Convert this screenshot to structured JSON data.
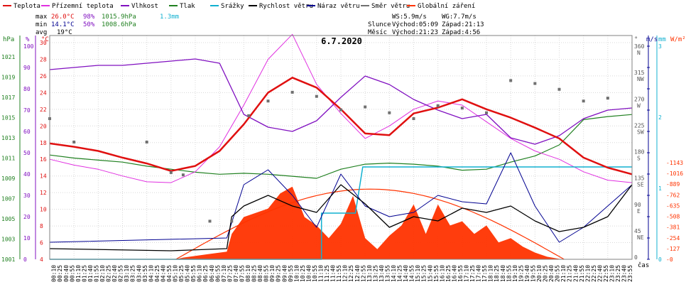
{
  "chart_data": {
    "type": "line",
    "title": "6.7.2020",
    "legend": [
      {
        "name": "Teplota",
        "color": "#e01010"
      },
      {
        "name": "Přízemní teplota",
        "color": "#e030e0"
      },
      {
        "name": "Vlhkost",
        "color": "#8010c0"
      },
      {
        "name": "Tlak",
        "color": "#208020"
      },
      {
        "name": "Srážky",
        "color": "#10b0d0"
      },
      {
        "name": "Rychlost větru",
        "color": "#000000"
      },
      {
        "name": "Náraz větru",
        "color": "#000090"
      },
      {
        "name": "Směr větru",
        "color": "#707070"
      },
      {
        "name": "Globální záření",
        "color": "#ff3300"
      }
    ],
    "stats": {
      "max_label": "max",
      "max_temp": "26.0°C",
      "max_hum": "98%",
      "max_press": "1015.9hPa",
      "rain": "1.3mm",
      "min_label": "min",
      "min_temp": "14.1°C",
      "min_hum": "50%",
      "min_press": "1008.6hPa",
      "avg_label": "avg",
      "avg_temp": "19°C"
    },
    "info": {
      "ws": "WS:5.9m/s",
      "wg": "WG:7.7m/s",
      "sun_label": "Slunce",
      "sun_rise": "Východ:05:09",
      "sun_set": "Západ:21:13",
      "moon_label": "Měsíc",
      "moon_rise": "Východ:21:23",
      "moon_set": "Západ:4:56"
    },
    "axis_units": {
      "hpa": "hPa",
      "pct": "%",
      "temp": "°C",
      "dir": "°",
      "wind": "m/s",
      "rain": "mm",
      "rad": "W/m²",
      "time": "čas"
    },
    "axes": {
      "hpa_ticks": [
        "1021",
        "1019",
        "1017",
        "1015",
        "1013",
        "1011",
        "1009",
        "1007",
        "1005",
        "1003",
        "1001"
      ],
      "pct_ticks": [
        "100",
        "90",
        "80",
        "70",
        "60",
        "50",
        "40",
        "30",
        "20",
        "10",
        "0"
      ],
      "temp_ticks": [
        "30",
        "28",
        "26",
        "24",
        "22",
        "20",
        "18",
        "16",
        "14",
        "12",
        "10",
        "8",
        "6",
        "4"
      ],
      "dir_ticks": [
        "360",
        "315",
        "270",
        "225",
        "180",
        "135",
        "90",
        "45",
        "0"
      ],
      "dir_labels": [
        "N",
        "NW",
        "W",
        "SW",
        "S",
        "SE",
        "E",
        "NE",
        ""
      ],
      "wind_ticks": [
        "10",
        "9",
        "8",
        "7",
        "6",
        "5",
        "4",
        "3",
        "2",
        "1",
        "0"
      ],
      "rain_ticks": [
        "3",
        "2",
        "1",
        "0"
      ],
      "rad_ticks": [
        "1143",
        "1016",
        "889",
        "762",
        "635",
        "508",
        "381",
        "254",
        "127",
        "0"
      ],
      "time_labels": [
        "00:10",
        "00:25",
        "00:40",
        "00:55",
        "01:10",
        "01:25",
        "01:40",
        "01:55",
        "02:10",
        "02:25",
        "02:40",
        "02:55",
        "03:10",
        "03:25",
        "03:40",
        "03:55",
        "04:10",
        "04:25",
        "04:40",
        "04:55",
        "05:10",
        "05:25",
        "05:40",
        "05:55",
        "06:10",
        "06:25",
        "06:40",
        "06:55",
        "07:10",
        "07:25",
        "07:40",
        "07:55",
        "08:10",
        "08:25",
        "08:40",
        "08:55",
        "09:10",
        "09:25",
        "09:40",
        "09:55",
        "10:10",
        "10:25",
        "10:40",
        "10:55",
        "11:10",
        "11:25",
        "11:40",
        "11:55",
        "12:10",
        "12:25",
        "12:40",
        "12:55",
        "13:10",
        "13:25",
        "13:40",
        "13:55",
        "14:10",
        "14:25",
        "14:40",
        "14:55",
        "15:10",
        "15:25",
        "15:40",
        "15:55",
        "16:10",
        "16:25",
        "16:40",
        "16:55",
        "17:10",
        "17:25",
        "17:40",
        "17:55",
        "18:10",
        "18:25",
        "18:40",
        "18:55",
        "19:10",
        "19:25",
        "19:40",
        "19:55",
        "20:10",
        "20:25",
        "20:40",
        "20:55",
        "21:10",
        "21:25",
        "21:40",
        "21:55",
        "22:10",
        "22:25",
        "22:40",
        "22:55",
        "23:10",
        "23:25",
        "23:40",
        "23:55"
      ]
    },
    "series_hours": {
      "temperature": [
        [
          0,
          17.9
        ],
        [
          1,
          17.5
        ],
        [
          2,
          17.0
        ],
        [
          3,
          16.2
        ],
        [
          4,
          15.5
        ],
        [
          5,
          14.6
        ],
        [
          6,
          15.2
        ],
        [
          7,
          17.0
        ],
        [
          8,
          20.2
        ],
        [
          9,
          24.0
        ],
        [
          10,
          25.8
        ],
        [
          11,
          24.6
        ],
        [
          12,
          22.0
        ],
        [
          13,
          19.1
        ],
        [
          14,
          18.9
        ],
        [
          15,
          21.5
        ],
        [
          16,
          22.2
        ],
        [
          17,
          23.2
        ],
        [
          18,
          22.0
        ],
        [
          19,
          21.0
        ],
        [
          20,
          19.8
        ],
        [
          21,
          18.5
        ],
        [
          22,
          16.2
        ],
        [
          23,
          15.0
        ],
        [
          24,
          14.2
        ]
      ],
      "ground_temperature": [
        [
          0,
          16.0
        ],
        [
          1,
          15.3
        ],
        [
          2,
          14.8
        ],
        [
          3,
          14.0
        ],
        [
          4,
          13.3
        ],
        [
          5,
          13.2
        ],
        [
          6,
          14.5
        ],
        [
          7,
          17.5
        ],
        [
          8,
          22.5
        ],
        [
          9,
          28.0
        ],
        [
          10,
          31.0
        ],
        [
          11,
          25.0
        ],
        [
          12,
          21.5
        ],
        [
          13,
          18.5
        ],
        [
          14,
          20.0
        ],
        [
          15,
          22.0
        ],
        [
          16,
          23.0
        ],
        [
          17,
          22.5
        ],
        [
          18,
          20.5
        ],
        [
          19,
          18.5
        ],
        [
          20,
          17.0
        ],
        [
          21,
          16.0
        ],
        [
          22,
          14.5
        ],
        [
          23,
          13.5
        ],
        [
          24,
          13.2
        ]
      ],
      "humidity": [
        [
          0,
          89
        ],
        [
          1,
          90
        ],
        [
          2,
          91
        ],
        [
          3,
          91
        ],
        [
          4,
          92
        ],
        [
          5,
          93
        ],
        [
          6,
          94
        ],
        [
          7,
          92
        ],
        [
          8,
          68
        ],
        [
          9,
          62
        ],
        [
          10,
          60
        ],
        [
          11,
          65
        ],
        [
          12,
          76
        ],
        [
          13,
          86
        ],
        [
          14,
          82
        ],
        [
          15,
          75
        ],
        [
          16,
          70
        ],
        [
          17,
          66
        ],
        [
          18,
          68
        ],
        [
          19,
          57
        ],
        [
          20,
          54
        ],
        [
          21,
          58
        ],
        [
          22,
          66
        ],
        [
          23,
          70
        ],
        [
          24,
          71
        ]
      ],
      "pressure": [
        [
          0,
          1011.3
        ],
        [
          1,
          1011.0
        ],
        [
          2,
          1010.8
        ],
        [
          3,
          1010.6
        ],
        [
          4,
          1010.2
        ],
        [
          5,
          1009.9
        ],
        [
          6,
          1009.6
        ],
        [
          7,
          1009.4
        ],
        [
          8,
          1009.5
        ],
        [
          9,
          1009.4
        ],
        [
          10,
          1009.2
        ],
        [
          11,
          1009.0
        ],
        [
          12,
          1009.9
        ],
        [
          13,
          1010.4
        ],
        [
          14,
          1010.5
        ],
        [
          15,
          1010.4
        ],
        [
          16,
          1010.2
        ],
        [
          17,
          1009.8
        ],
        [
          18,
          1009.9
        ],
        [
          19,
          1010.6
        ],
        [
          20,
          1011.2
        ],
        [
          21,
          1012.3
        ],
        [
          22,
          1014.8
        ],
        [
          23,
          1015.1
        ],
        [
          24,
          1015.3
        ]
      ],
      "rain_mm": [
        [
          0,
          0
        ],
        [
          11.2,
          0
        ],
        [
          11.2,
          0.65
        ],
        [
          12.6,
          0.65
        ],
        [
          12.9,
          1.3
        ],
        [
          24,
          1.3
        ]
      ],
      "wind_speed": [
        [
          0,
          0.5
        ],
        [
          5,
          0.4
        ],
        [
          7.3,
          0.5
        ],
        [
          7.5,
          2.0
        ],
        [
          8,
          2.5
        ],
        [
          9,
          3.0
        ],
        [
          10,
          2.5
        ],
        [
          11,
          2.2
        ],
        [
          12,
          3.5
        ],
        [
          13,
          2.6
        ],
        [
          14,
          1.5
        ],
        [
          15,
          2.0
        ],
        [
          16,
          1.8
        ],
        [
          17,
          2.4
        ],
        [
          18,
          2.2
        ],
        [
          19,
          2.5
        ],
        [
          20,
          1.8
        ],
        [
          21,
          1.3
        ],
        [
          22,
          1.5
        ],
        [
          23,
          2.0
        ],
        [
          24,
          3.5
        ]
      ],
      "wind_gust": [
        [
          0,
          0.8
        ],
        [
          7.3,
          1.0
        ],
        [
          8,
          3.5
        ],
        [
          9,
          4.2
        ],
        [
          10,
          3.0
        ],
        [
          11,
          1.5
        ],
        [
          12,
          4.0
        ],
        [
          13,
          2.5
        ],
        [
          14,
          2.0
        ],
        [
          15,
          2.2
        ],
        [
          16,
          3.0
        ],
        [
          17,
          2.7
        ],
        [
          18,
          2.6
        ],
        [
          19,
          5.0
        ],
        [
          20,
          2.5
        ],
        [
          21,
          0.8
        ],
        [
          22,
          1.5
        ],
        [
          23,
          2.5
        ],
        [
          24,
          3.5
        ]
      ],
      "wind_dir_deg": [
        [
          0,
          240
        ],
        [
          1,
          200
        ],
        [
          4,
          200
        ],
        [
          5,
          148
        ],
        [
          5.5,
          144
        ],
        [
          6.6,
          65
        ],
        [
          7.5,
          65
        ],
        [
          8.2,
          245
        ],
        [
          9,
          270
        ],
        [
          10,
          285
        ],
        [
          11,
          278
        ],
        [
          12,
          255
        ],
        [
          13,
          260
        ],
        [
          14,
          250
        ],
        [
          15,
          240
        ],
        [
          16,
          262
        ],
        [
          17,
          258
        ],
        [
          18,
          250
        ],
        [
          19,
          305
        ],
        [
          20,
          300
        ],
        [
          21,
          290
        ],
        [
          22,
          270
        ],
        [
          23,
          275
        ]
      ],
      "radiation": [
        [
          0,
          0
        ],
        [
          5.2,
          0
        ],
        [
          5.5,
          20
        ],
        [
          6.5,
          60
        ],
        [
          7.3,
          90
        ],
        [
          7.5,
          300
        ],
        [
          8,
          500
        ],
        [
          9,
          600
        ],
        [
          9.5,
          780
        ],
        [
          10,
          860
        ],
        [
          10.5,
          500
        ],
        [
          11,
          400
        ],
        [
          11.5,
          250
        ],
        [
          12,
          420
        ],
        [
          12.5,
          750
        ],
        [
          13,
          250
        ],
        [
          13.5,
          120
        ],
        [
          14,
          280
        ],
        [
          14.5,
          400
        ],
        [
          15,
          650
        ],
        [
          15.5,
          300
        ],
        [
          16,
          650
        ],
        [
          16.5,
          400
        ],
        [
          17,
          450
        ],
        [
          17.5,
          300
        ],
        [
          18,
          400
        ],
        [
          18.5,
          200
        ],
        [
          19,
          250
        ],
        [
          19.5,
          150
        ],
        [
          20,
          80
        ],
        [
          20.5,
          30
        ],
        [
          21,
          5
        ],
        [
          21.5,
          0
        ],
        [
          24,
          0
        ]
      ]
    }
  }
}
